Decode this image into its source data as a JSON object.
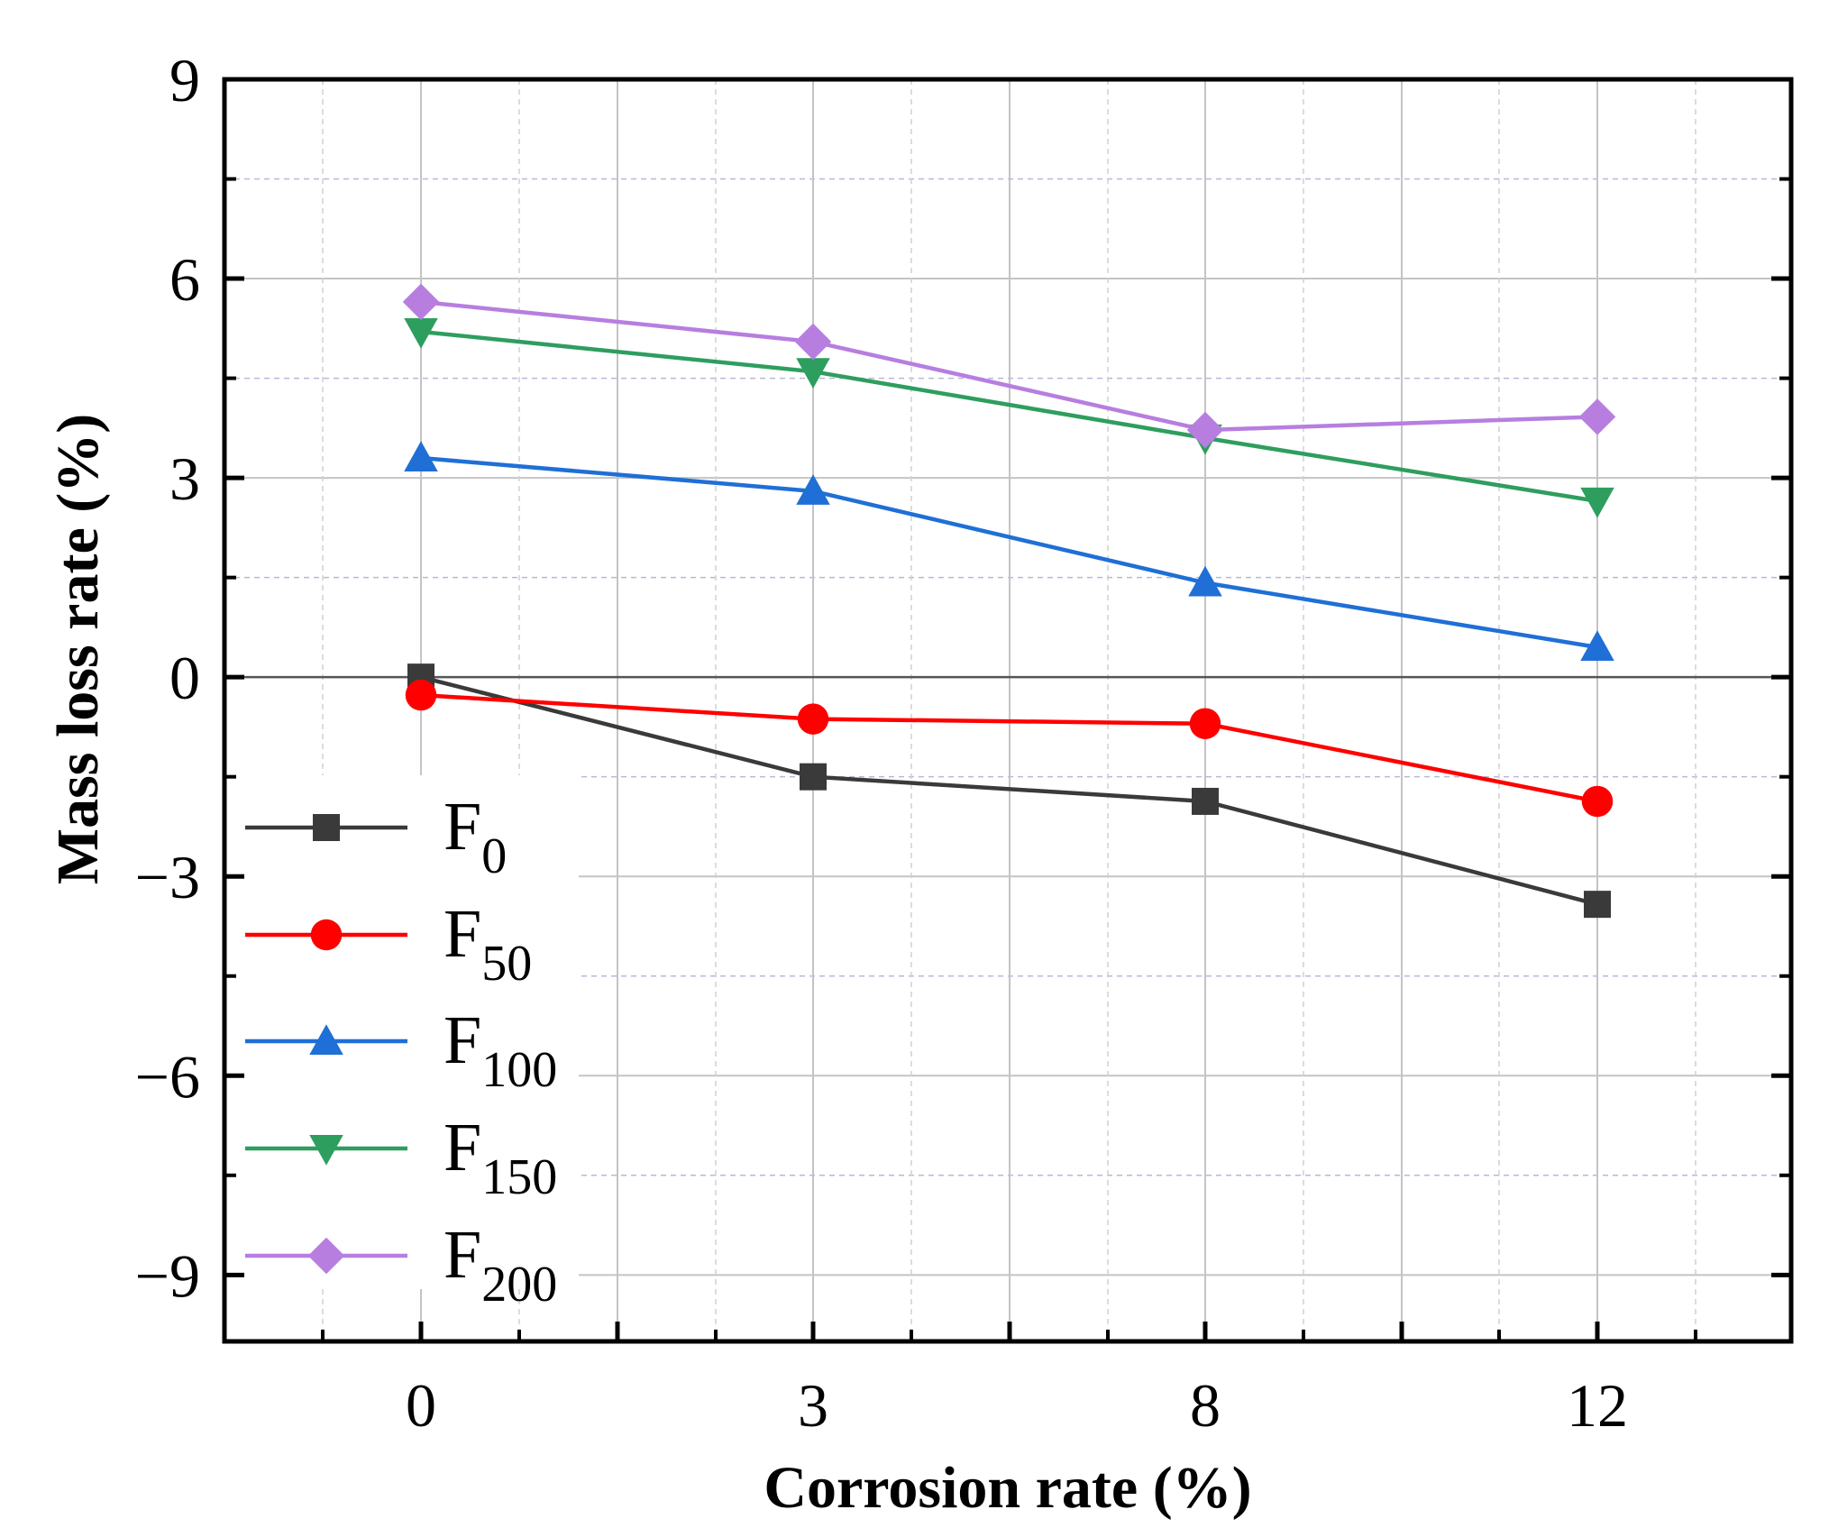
{
  "chart_data": {
    "type": "line",
    "title": "",
    "xlabel": "Corrosion rate (%)",
    "ylabel": "Mass loss rate (%)",
    "categories": [
      "0",
      "3",
      "8",
      "12"
    ],
    "ylim": [
      -10,
      9
    ],
    "yticks": [
      -9,
      -6,
      -3,
      0,
      3,
      6,
      9
    ],
    "ytick_labels": [
      "−9",
      "−6",
      "−3",
      "0",
      "3",
      "6",
      "9"
    ],
    "grid": true,
    "legend_position": "bottom-left",
    "series": [
      {
        "name": "F0",
        "label_main": "F",
        "label_sub": "0",
        "color": "#3a3a3a",
        "marker": "square",
        "values": [
          0.0,
          -1.5,
          -1.87,
          -3.42
        ]
      },
      {
        "name": "F50",
        "label_main": "F",
        "label_sub": "50",
        "color": "#ff0000",
        "marker": "circle",
        "values": [
          -0.27,
          -0.63,
          -0.7,
          -1.87
        ]
      },
      {
        "name": "F100",
        "label_main": "F",
        "label_sub": "100",
        "color": "#1f6fd6",
        "marker": "triangle-up",
        "values": [
          3.3,
          2.8,
          1.42,
          0.45
        ]
      },
      {
        "name": "F150",
        "label_main": "F",
        "label_sub": "150",
        "color": "#2e9e5e",
        "marker": "triangle-down",
        "values": [
          5.2,
          4.6,
          3.6,
          2.65
        ]
      },
      {
        "name": "F200",
        "label_main": "F",
        "label_sub": "200",
        "color": "#b77ee0",
        "marker": "diamond",
        "values": [
          5.65,
          5.05,
          3.72,
          3.92
        ]
      }
    ]
  }
}
